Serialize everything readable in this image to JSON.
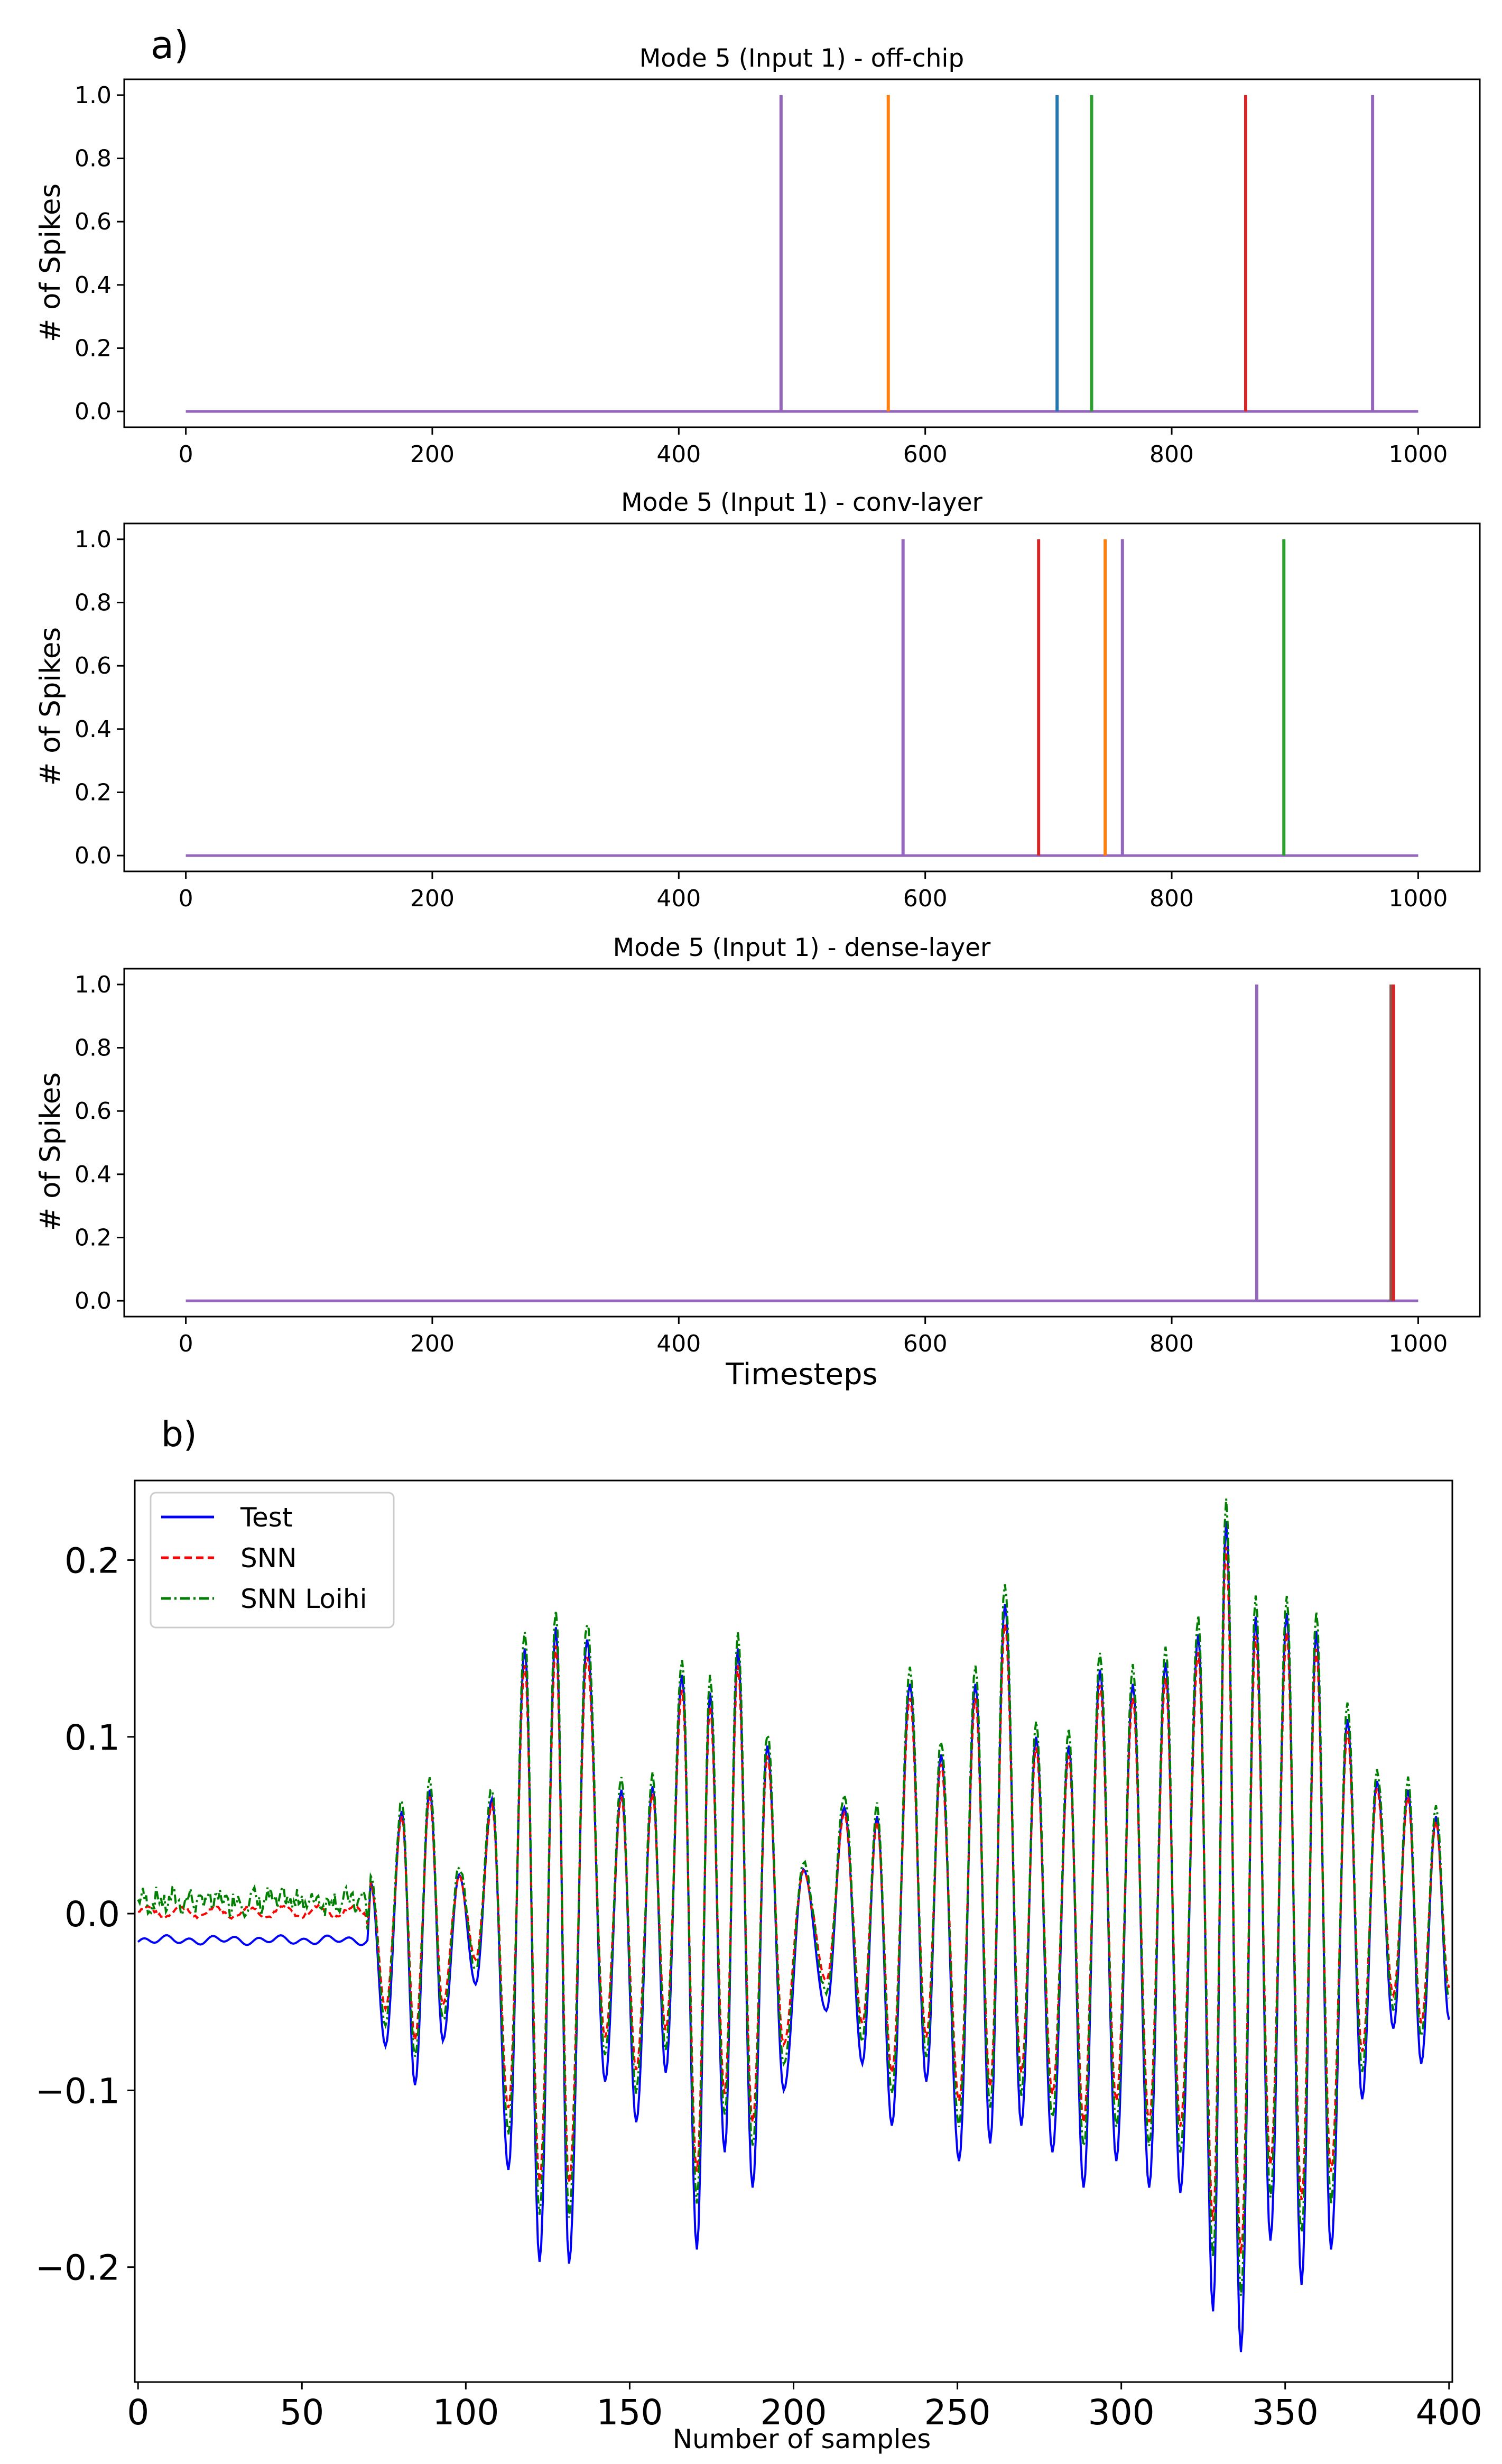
{
  "figure": {
    "panel_a_label": "a)",
    "panel_b_label": "b)"
  },
  "colors": {
    "c0": "#1f77b4",
    "c1": "#ff7f0e",
    "c2": "#2ca02c",
    "c3": "#d62728",
    "c4": "#9467bd",
    "c5": "#8c564b",
    "test": "#0000ff",
    "snn": "#ff0000",
    "loihi": "#008000"
  },
  "chart_data": [
    {
      "type": "line",
      "panel": "a",
      "title": "Mode 5 (Input 1) - off-chip",
      "xlabel": "",
      "ylabel": "# of Spikes",
      "xlim": [
        -50,
        1050
      ],
      "ylim": [
        -0.05,
        1.05
      ],
      "xticks": [
        0,
        200,
        400,
        600,
        800,
        1000
      ],
      "yticks": [
        0.0,
        0.2,
        0.4,
        0.6,
        0.8,
        1.0
      ],
      "x_range": [
        0,
        1000
      ],
      "spikes": [
        {
          "t": 483,
          "color": "c4"
        },
        {
          "t": 570,
          "color": "c1"
        },
        {
          "t": 707,
          "color": "c0"
        },
        {
          "t": 735,
          "color": "c2"
        },
        {
          "t": 860,
          "color": "c3"
        },
        {
          "t": 963,
          "color": "c4"
        }
      ]
    },
    {
      "type": "line",
      "panel": "a",
      "title": "Mode 5 (Input 1) - conv-layer",
      "xlabel": "",
      "ylabel": "# of Spikes",
      "xlim": [
        -50,
        1050
      ],
      "ylim": [
        -0.05,
        1.05
      ],
      "xticks": [
        0,
        200,
        400,
        600,
        800,
        1000
      ],
      "yticks": [
        0.0,
        0.2,
        0.4,
        0.6,
        0.8,
        1.0
      ],
      "x_range": [
        0,
        1000
      ],
      "spikes": [
        {
          "t": 582,
          "color": "c4"
        },
        {
          "t": 692,
          "color": "c3"
        },
        {
          "t": 746,
          "color": "c1"
        },
        {
          "t": 760,
          "color": "c4"
        },
        {
          "t": 891,
          "color": "c2"
        }
      ]
    },
    {
      "type": "line",
      "panel": "a",
      "title": "Mode 5 (Input 1) - dense-layer",
      "xlabel": "Timesteps",
      "ylabel": "# of Spikes",
      "xlim": [
        -50,
        1050
      ],
      "ylim": [
        -0.05,
        1.05
      ],
      "xticks": [
        0,
        200,
        400,
        600,
        800,
        1000
      ],
      "yticks": [
        0.0,
        0.2,
        0.4,
        0.6,
        0.8,
        1.0
      ],
      "x_range": [
        0,
        1000
      ],
      "spikes": [
        {
          "t": 869,
          "color": "c4"
        },
        {
          "t": 978,
          "color": "c5"
        },
        {
          "t": 980,
          "color": "c3"
        }
      ]
    },
    {
      "type": "line",
      "panel": "b",
      "title": "",
      "xlabel": "Number of samples",
      "ylabel": "",
      "xlim": [
        -1,
        401
      ],
      "ylim": [
        -0.265,
        0.245
      ],
      "xticks": [
        0,
        50,
        100,
        150,
        200,
        250,
        300,
        350,
        400
      ],
      "yticks": [
        -0.2,
        -0.1,
        0.0,
        0.1,
        0.2
      ],
      "ytick_labels": [
        "−0.2",
        "−0.1",
        "0.0",
        "0.1",
        "0.2"
      ],
      "legend_position": "top-left",
      "series": [
        {
          "name": "Test",
          "style": "solid",
          "color": "test"
        },
        {
          "name": "SNN",
          "style": "dashed",
          "color": "snn"
        },
        {
          "name": "SNN Loihi",
          "style": "dashdot",
          "color": "loihi"
        }
      ],
      "noise_start": 70,
      "pre_onset": {
        "test": -0.015,
        "snn": 0.001,
        "loihi": 0.006
      },
      "extrema": [
        {
          "x": 71,
          "y": 0.018
        },
        {
          "x": 75.5,
          "y": -0.075
        },
        {
          "x": 80.5,
          "y": 0.058
        },
        {
          "x": 84.5,
          "y": -0.097
        },
        {
          "x": 89,
          "y": 0.07
        },
        {
          "x": 93,
          "y": -0.072
        },
        {
          "x": 98,
          "y": 0.022
        },
        {
          "x": 103,
          "y": -0.04
        },
        {
          "x": 108,
          "y": 0.065
        },
        {
          "x": 113,
          "y": -0.145
        },
        {
          "x": 118,
          "y": 0.15
        },
        {
          "x": 122.5,
          "y": -0.197
        },
        {
          "x": 127.5,
          "y": 0.162
        },
        {
          "x": 131.5,
          "y": -0.198
        },
        {
          "x": 137,
          "y": 0.155
        },
        {
          "x": 142.5,
          "y": -0.095
        },
        {
          "x": 147.5,
          "y": 0.07
        },
        {
          "x": 152,
          "y": -0.118
        },
        {
          "x": 157,
          "y": 0.072
        },
        {
          "x": 161,
          "y": -0.09
        },
        {
          "x": 166,
          "y": 0.135
        },
        {
          "x": 170.5,
          "y": -0.19
        },
        {
          "x": 174.5,
          "y": 0.125
        },
        {
          "x": 179,
          "y": -0.135
        },
        {
          "x": 183,
          "y": 0.15
        },
        {
          "x": 187.5,
          "y": -0.155
        },
        {
          "x": 192,
          "y": 0.095
        },
        {
          "x": 197,
          "y": -0.1
        },
        {
          "x": 203,
          "y": 0.025
        },
        {
          "x": 210,
          "y": -0.055
        },
        {
          "x": 215.5,
          "y": 0.06
        },
        {
          "x": 221,
          "y": -0.085
        },
        {
          "x": 225.5,
          "y": 0.055
        },
        {
          "x": 230,
          "y": -0.12
        },
        {
          "x": 235.5,
          "y": 0.13
        },
        {
          "x": 240.5,
          "y": -0.095
        },
        {
          "x": 245,
          "y": 0.09
        },
        {
          "x": 250.5,
          "y": -0.14
        },
        {
          "x": 255.5,
          "y": 0.13
        },
        {
          "x": 260,
          "y": -0.13
        },
        {
          "x": 264.5,
          "y": 0.175
        },
        {
          "x": 269.5,
          "y": -0.12
        },
        {
          "x": 274,
          "y": 0.1
        },
        {
          "x": 279,
          "y": -0.135
        },
        {
          "x": 284,
          "y": 0.095
        },
        {
          "x": 288.5,
          "y": -0.155
        },
        {
          "x": 293.5,
          "y": 0.138
        },
        {
          "x": 298.5,
          "y": -0.14
        },
        {
          "x": 303.5,
          "y": 0.13
        },
        {
          "x": 308.5,
          "y": -0.155
        },
        {
          "x": 313.5,
          "y": 0.142
        },
        {
          "x": 318,
          "y": -0.158
        },
        {
          "x": 323.5,
          "y": 0.158
        },
        {
          "x": 328,
          "y": -0.225
        },
        {
          "x": 332,
          "y": 0.222
        },
        {
          "x": 336.5,
          "y": -0.248
        },
        {
          "x": 341,
          "y": 0.168
        },
        {
          "x": 345.5,
          "y": -0.185
        },
        {
          "x": 350.5,
          "y": 0.17
        },
        {
          "x": 355,
          "y": -0.21
        },
        {
          "x": 359.5,
          "y": 0.16
        },
        {
          "x": 364,
          "y": -0.19
        },
        {
          "x": 369,
          "y": 0.11
        },
        {
          "x": 373.5,
          "y": -0.105
        },
        {
          "x": 378,
          "y": 0.075
        },
        {
          "x": 383,
          "y": -0.065
        },
        {
          "x": 387.5,
          "y": 0.07
        },
        {
          "x": 391.5,
          "y": -0.085
        },
        {
          "x": 396,
          "y": 0.055
        },
        {
          "x": 400,
          "y": -0.06
        }
      ]
    }
  ]
}
